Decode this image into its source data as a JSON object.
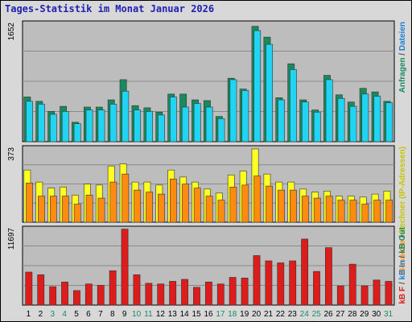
{
  "title": "Tages-Statistik im Monat Januar 2026",
  "colors": {
    "title": "#1f1fb0",
    "panel_bg": "#bdbdbd",
    "frame_bg": "#d8d8d8",
    "grid": "#8a8a8a",
    "anfragen": "#1a8a5e",
    "dateien": "#22d4f2",
    "rechner": "#ffff22",
    "besuche": "#ff8c10",
    "kb_f": "#dd1c1c",
    "weekend_day": "#1a8a5e",
    "weekday_day": "#000000"
  },
  "chart_data": [
    {
      "type": "bar",
      "name": "anfragen-dateien",
      "scale_label": "1652",
      "ymax": 1652,
      "x": [
        1,
        2,
        3,
        4,
        5,
        6,
        7,
        8,
        9,
        10,
        11,
        12,
        13,
        14,
        15,
        16,
        17,
        18,
        19,
        20,
        21,
        22,
        23,
        24,
        25,
        26,
        27,
        28,
        29,
        30,
        31
      ],
      "series": [
        {
          "name": "Anfragen",
          "color": "#1a8a5e",
          "values": [
            620,
            560,
            420,
            490,
            270,
            480,
            480,
            580,
            860,
            500,
            470,
            410,
            660,
            660,
            580,
            570,
            350,
            880,
            730,
            1600,
            1450,
            610,
            1080,
            580,
            440,
            920,
            650,
            550,
            740,
            690,
            560
          ]
        },
        {
          "name": "Dateien",
          "color": "#22d4f2",
          "values": [
            560,
            520,
            380,
            420,
            250,
            440,
            440,
            520,
            700,
            440,
            420,
            370,
            620,
            480,
            530,
            480,
            320,
            860,
            710,
            1540,
            1350,
            580,
            1000,
            550,
            410,
            860,
            600,
            490,
            660,
            630,
            540
          ]
        }
      ]
    },
    {
      "type": "bar",
      "name": "rechner-besuche",
      "scale_label": "373",
      "ymax": 373,
      "series": [
        {
          "name": "Rechner",
          "color": "#ffff22",
          "values": [
            260,
            200,
            170,
            175,
            135,
            190,
            185,
            280,
            290,
            200,
            200,
            185,
            260,
            225,
            200,
            165,
            145,
            235,
            255,
            365,
            240,
            200,
            200,
            165,
            150,
            155,
            130,
            130,
            125,
            140,
            155
          ]
        },
        {
          "name": "Besuche",
          "color": "#ff8c10",
          "values": [
            195,
            130,
            130,
            130,
            90,
            135,
            120,
            200,
            240,
            160,
            150,
            140,
            215,
            190,
            170,
            130,
            110,
            175,
            185,
            230,
            180,
            160,
            160,
            130,
            120,
            130,
            110,
            110,
            90,
            110,
            110
          ]
        }
      ]
    },
    {
      "type": "bar",
      "name": "kb-f",
      "scale_label": "11697",
      "ymax": 11697,
      "series": [
        {
          "name": "KB F",
          "color": "#dd1c1c",
          "values": [
            5000,
            4600,
            2800,
            3500,
            2200,
            3200,
            3000,
            5200,
            11500,
            4600,
            3300,
            3200,
            3600,
            3900,
            2700,
            3500,
            3200,
            4200,
            4100,
            7500,
            6700,
            6400,
            6700,
            10000,
            5100,
            8700,
            2900,
            6200,
            2900,
            3800,
            3600
          ]
        }
      ]
    }
  ],
  "days": [
    {
      "label": "1",
      "weekend": false
    },
    {
      "label": "2",
      "weekend": false
    },
    {
      "label": "3",
      "weekend": true
    },
    {
      "label": "4",
      "weekend": true
    },
    {
      "label": "5",
      "weekend": false
    },
    {
      "label": "6",
      "weekend": false
    },
    {
      "label": "7",
      "weekend": false
    },
    {
      "label": "8",
      "weekend": false
    },
    {
      "label": "9",
      "weekend": false
    },
    {
      "label": "10",
      "weekend": true
    },
    {
      "label": "11",
      "weekend": true
    },
    {
      "label": "12",
      "weekend": false
    },
    {
      "label": "13",
      "weekend": false
    },
    {
      "label": "14",
      "weekend": false
    },
    {
      "label": "15",
      "weekend": false
    },
    {
      "label": "16",
      "weekend": false
    },
    {
      "label": "17",
      "weekend": true
    },
    {
      "label": "18",
      "weekend": true
    },
    {
      "label": "19",
      "weekend": false
    },
    {
      "label": "20",
      "weekend": false
    },
    {
      "label": "21",
      "weekend": false
    },
    {
      "label": "22",
      "weekend": false
    },
    {
      "label": "23",
      "weekend": false
    },
    {
      "label": "24",
      "weekend": true
    },
    {
      "label": "25",
      "weekend": true
    },
    {
      "label": "26",
      "weekend": false
    },
    {
      "label": "27",
      "weekend": false
    },
    {
      "label": "28",
      "weekend": false
    },
    {
      "label": "29",
      "weekend": false
    },
    {
      "label": "30",
      "weekend": false
    },
    {
      "label": "31",
      "weekend": true
    }
  ],
  "right_labels": {
    "panel1": [
      {
        "text": "Anfragen",
        "color": "#1a8a5e"
      },
      {
        "text": " / ",
        "color": "#555555"
      },
      {
        "text": "Dateien",
        "color": "#1e7fd6"
      }
    ],
    "panel2": [
      {
        "text": "Besuche",
        "color": "#ff8c10"
      },
      {
        "text": " / ",
        "color": "#555555"
      },
      {
        "text": "Rechner (IP-Adressen)",
        "color": "#c6c600"
      }
    ],
    "panel3": [
      {
        "text": "kB F",
        "color": "#dd1c1c"
      },
      {
        "text": " / ",
        "color": "#555555"
      },
      {
        "text": "kB In",
        "color": "#1e7fd6"
      },
      {
        "text": " / ",
        "color": "#555555"
      },
      {
        "text": "kB Out",
        "color": "#1a8a5e"
      }
    ]
  }
}
